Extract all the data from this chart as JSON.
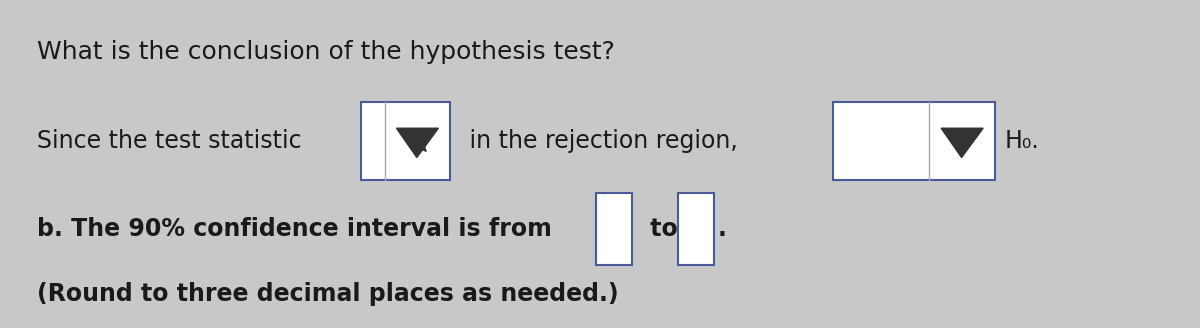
{
  "background_color": "#c8c8c8",
  "title_text": "What is the conclusion of the hypothesis test?",
  "line1_parts": [
    "Since the test statistic",
    "in the rejection region,",
    "H₀."
  ],
  "line2_parts": [
    "b. The 90% confidence interval is from",
    "to",
    "."
  ],
  "line3_text": "(Round to three decimal places as needed.)",
  "font_size_title": 18,
  "font_size_body": 17,
  "text_color": "#1a1a1a",
  "box_color": "#ffffff",
  "box_border_color": "#4a5a9a",
  "box_border_color2": "#888888"
}
